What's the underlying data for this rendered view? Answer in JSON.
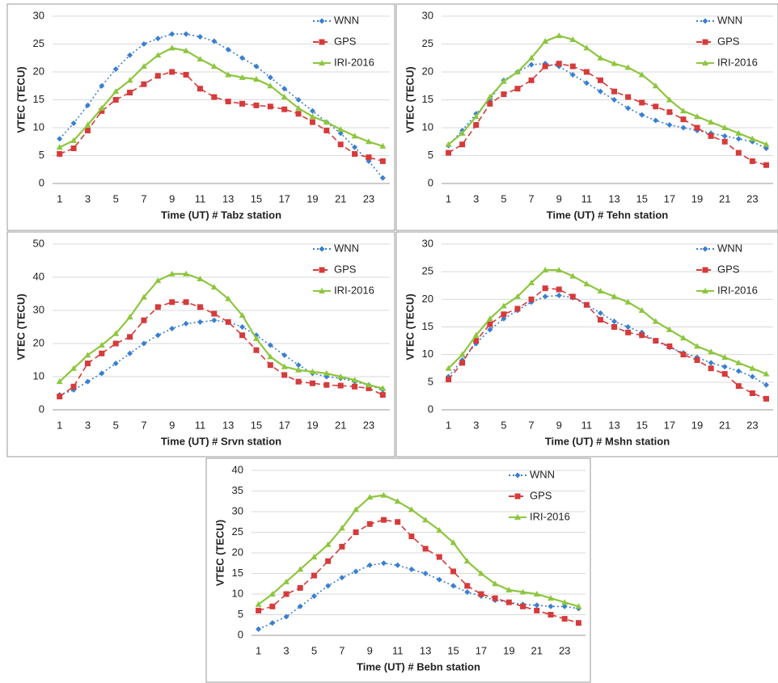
{
  "chart_data": [
    {
      "type": "line",
      "xlabel": "Time (UT) # Tabz station",
      "ylabel": "VTEC (TECU)",
      "categories": [
        1,
        null,
        3,
        null,
        5,
        null,
        7,
        null,
        9,
        null,
        11,
        null,
        13,
        null,
        15,
        null,
        17,
        null,
        19,
        null,
        21,
        null,
        23,
        null
      ],
      "ylim": [
        0,
        30
      ],
      "yticks": [
        0,
        5,
        10,
        15,
        20,
        25,
        30
      ],
      "grid": true,
      "legend": "upper right",
      "series": [
        {
          "name": "WNN",
          "color": "#3a7fd0",
          "linestyle": "dotted",
          "marker": "diamond",
          "values": [
            8,
            10.8,
            14,
            17.5,
            20.5,
            23,
            25,
            26,
            26.8,
            26.8,
            26.3,
            25.5,
            24,
            22.5,
            21,
            19,
            17,
            15,
            13,
            11,
            9,
            6.5,
            4,
            1
          ]
        },
        {
          "name": "GPS",
          "color": "#d63b3b",
          "linestyle": "dashed",
          "marker": "square",
          "values": [
            5.3,
            6.3,
            9.5,
            13,
            15,
            16.3,
            17.8,
            19.3,
            20,
            19.5,
            17,
            15.5,
            14.7,
            14.3,
            14,
            13.8,
            13.3,
            12.5,
            11,
            9.5,
            7,
            5.3,
            4.7,
            4
          ]
        },
        {
          "name": "IRI-2016",
          "color": "#8dc63f",
          "linestyle": "solid",
          "marker": "triangle",
          "values": [
            6.5,
            7.7,
            10.5,
            13.5,
            16.5,
            18.5,
            21,
            23,
            24.3,
            23.8,
            22.3,
            21,
            19.5,
            19,
            18.7,
            17.5,
            15.5,
            13.5,
            12,
            11,
            9.7,
            8.5,
            7.5,
            6.7
          ]
        }
      ]
    },
    {
      "type": "line",
      "xlabel": "Time (UT) # Tehn station",
      "ylabel": "VTEC (TECU)",
      "categories": [
        1,
        null,
        3,
        null,
        5,
        null,
        7,
        null,
        9,
        null,
        11,
        null,
        13,
        null,
        15,
        null,
        17,
        null,
        19,
        null,
        21,
        null,
        23,
        null
      ],
      "ylim": [
        0,
        30
      ],
      "yticks": [
        0,
        5,
        10,
        15,
        20,
        25,
        30
      ],
      "grid": true,
      "legend": "upper right",
      "series": [
        {
          "name": "WNN",
          "color": "#3a7fd0",
          "linestyle": "dotted",
          "marker": "diamond",
          "values": [
            6.8,
            9.5,
            12.5,
            15,
            18.5,
            20,
            21.3,
            21.5,
            21,
            19.5,
            18,
            16.5,
            15,
            13.5,
            12.3,
            11.3,
            10.5,
            10,
            9.5,
            9,
            8.5,
            8,
            7.5,
            6.3
          ]
        },
        {
          "name": "GPS",
          "color": "#d63b3b",
          "linestyle": "dashed",
          "marker": "square",
          "values": [
            5.5,
            7,
            10.5,
            14.3,
            16,
            17,
            18.5,
            21,
            21.5,
            21,
            20,
            18.5,
            16.5,
            15.5,
            14.5,
            13.8,
            12.8,
            11.5,
            10,
            8.5,
            7.5,
            5.5,
            4,
            3.3
          ]
        },
        {
          "name": "IRI-2016",
          "color": "#8dc63f",
          "linestyle": "solid",
          "marker": "triangle",
          "values": [
            7,
            9,
            12,
            15.5,
            18.3,
            20,
            22.5,
            25.5,
            26.5,
            25.8,
            24.3,
            22.5,
            21.5,
            20.8,
            19.5,
            17.5,
            15,
            13,
            12,
            11,
            10,
            9,
            8,
            7
          ]
        }
      ]
    },
    {
      "type": "line",
      "xlabel": "Time (UT) # Srvn station",
      "ylabel": "VTEC (TECU)",
      "categories": [
        1,
        null,
        3,
        null,
        5,
        null,
        7,
        null,
        9,
        null,
        11,
        null,
        13,
        null,
        15,
        null,
        17,
        null,
        19,
        null,
        21,
        null,
        23,
        null
      ],
      "ylim": [
        0,
        50
      ],
      "yticks": [
        0,
        10,
        20,
        30,
        40,
        50
      ],
      "grid": true,
      "legend": "upper right",
      "series": [
        {
          "name": "WNN",
          "color": "#3a7fd0",
          "linestyle": "dotted",
          "marker": "diamond",
          "values": [
            4.5,
            6,
            8.5,
            11,
            14,
            17,
            20,
            22.5,
            24.5,
            26,
            26.5,
            27,
            26.5,
            25,
            22.5,
            19.5,
            16.5,
            13.5,
            11,
            10,
            9.5,
            8.5,
            7.5,
            6
          ]
        },
        {
          "name": "GPS",
          "color": "#d63b3b",
          "linestyle": "dashed",
          "marker": "square",
          "values": [
            4,
            7,
            14,
            17,
            20,
            22,
            27,
            31,
            32.5,
            32.5,
            31,
            29,
            26.5,
            22.5,
            18,
            13.5,
            10.5,
            8.5,
            8,
            7.5,
            7.3,
            7,
            6.5,
            4.5
          ]
        },
        {
          "name": "IRI-2016",
          "color": "#8dc63f",
          "linestyle": "solid",
          "marker": "triangle",
          "values": [
            8.5,
            12.5,
            16.5,
            19.5,
            23,
            28,
            34,
            39,
            41,
            41,
            39.5,
            37,
            33.5,
            28.5,
            21.5,
            16,
            13,
            12,
            11.5,
            11,
            10,
            9,
            7.5,
            6.5
          ]
        }
      ]
    },
    {
      "type": "line",
      "xlabel": "Time (UT) # Mshn station",
      "ylabel": "VTEC (TECU)",
      "categories": [
        1,
        null,
        3,
        null,
        5,
        null,
        7,
        null,
        9,
        null,
        11,
        null,
        13,
        null,
        15,
        null,
        17,
        null,
        19,
        null,
        21,
        null,
        23,
        null
      ],
      "ylim": [
        0,
        30
      ],
      "yticks": [
        0,
        5,
        10,
        15,
        20,
        25,
        30
      ],
      "grid": true,
      "legend": "upper right",
      "series": [
        {
          "name": "WNN",
          "color": "#3a7fd0",
          "linestyle": "dotted",
          "marker": "diamond",
          "values": [
            6,
            9,
            12,
            14.5,
            16.5,
            18,
            19.5,
            20.5,
            20.7,
            20.3,
            19,
            17.5,
            16,
            15,
            14,
            12.5,
            11.3,
            10.3,
            9.5,
            8.5,
            7.8,
            7,
            6,
            4.5
          ]
        },
        {
          "name": "GPS",
          "color": "#d63b3b",
          "linestyle": "dashed",
          "marker": "square",
          "values": [
            5.5,
            8.5,
            12.5,
            15.5,
            17.3,
            18.3,
            20,
            22,
            21.8,
            20.5,
            19,
            16.3,
            15,
            14,
            13.5,
            12.5,
            11.5,
            10,
            9,
            7.5,
            6.5,
            4.3,
            3,
            2
          ]
        },
        {
          "name": "IRI-2016",
          "color": "#8dc63f",
          "linestyle": "solid",
          "marker": "triangle",
          "values": [
            7.5,
            10,
            13.5,
            16.5,
            18.8,
            20.5,
            23,
            25.3,
            25.3,
            24.2,
            22.8,
            21.5,
            20.5,
            19.5,
            18,
            16,
            14.5,
            13,
            11.5,
            10.5,
            9.5,
            8.5,
            7.5,
            6.5
          ]
        }
      ]
    },
    {
      "type": "line",
      "xlabel": "Time (UT) # Bebn station",
      "ylabel": "VTEC (TECU)",
      "categories": [
        1,
        null,
        3,
        null,
        5,
        null,
        7,
        null,
        9,
        null,
        11,
        null,
        13,
        null,
        15,
        null,
        17,
        null,
        19,
        null,
        21,
        null,
        23,
        null
      ],
      "ylim": [
        0,
        40
      ],
      "yticks": [
        0,
        5,
        10,
        15,
        20,
        25,
        30,
        35,
        40
      ],
      "grid": true,
      "legend": "upper right",
      "series": [
        {
          "name": "WNN",
          "color": "#3a7fd0",
          "linestyle": "dotted",
          "marker": "diamond",
          "values": [
            1.5,
            3,
            4.5,
            7,
            9.5,
            12,
            14,
            15.5,
            17,
            17.5,
            17,
            16,
            15,
            13.5,
            12,
            10.5,
            9.5,
            8.5,
            8,
            7.5,
            7.3,
            7,
            7,
            6.5
          ]
        },
        {
          "name": "GPS",
          "color": "#d63b3b",
          "linestyle": "dashed",
          "marker": "square",
          "values": [
            6,
            7,
            10,
            11.5,
            14.5,
            18,
            21.5,
            25,
            27,
            28,
            27.5,
            24,
            21,
            19,
            15.5,
            12,
            10,
            9,
            8,
            7,
            6,
            5,
            4,
            3
          ]
        },
        {
          "name": "IRI-2016",
          "color": "#8dc63f",
          "linestyle": "solid",
          "marker": "triangle",
          "values": [
            7.5,
            10,
            13,
            16,
            19,
            22,
            26,
            30.5,
            33.5,
            34,
            32.5,
            30.5,
            28,
            25.5,
            22.5,
            18,
            15,
            12.5,
            11,
            10.5,
            10,
            9,
            8,
            7
          ]
        }
      ]
    }
  ]
}
